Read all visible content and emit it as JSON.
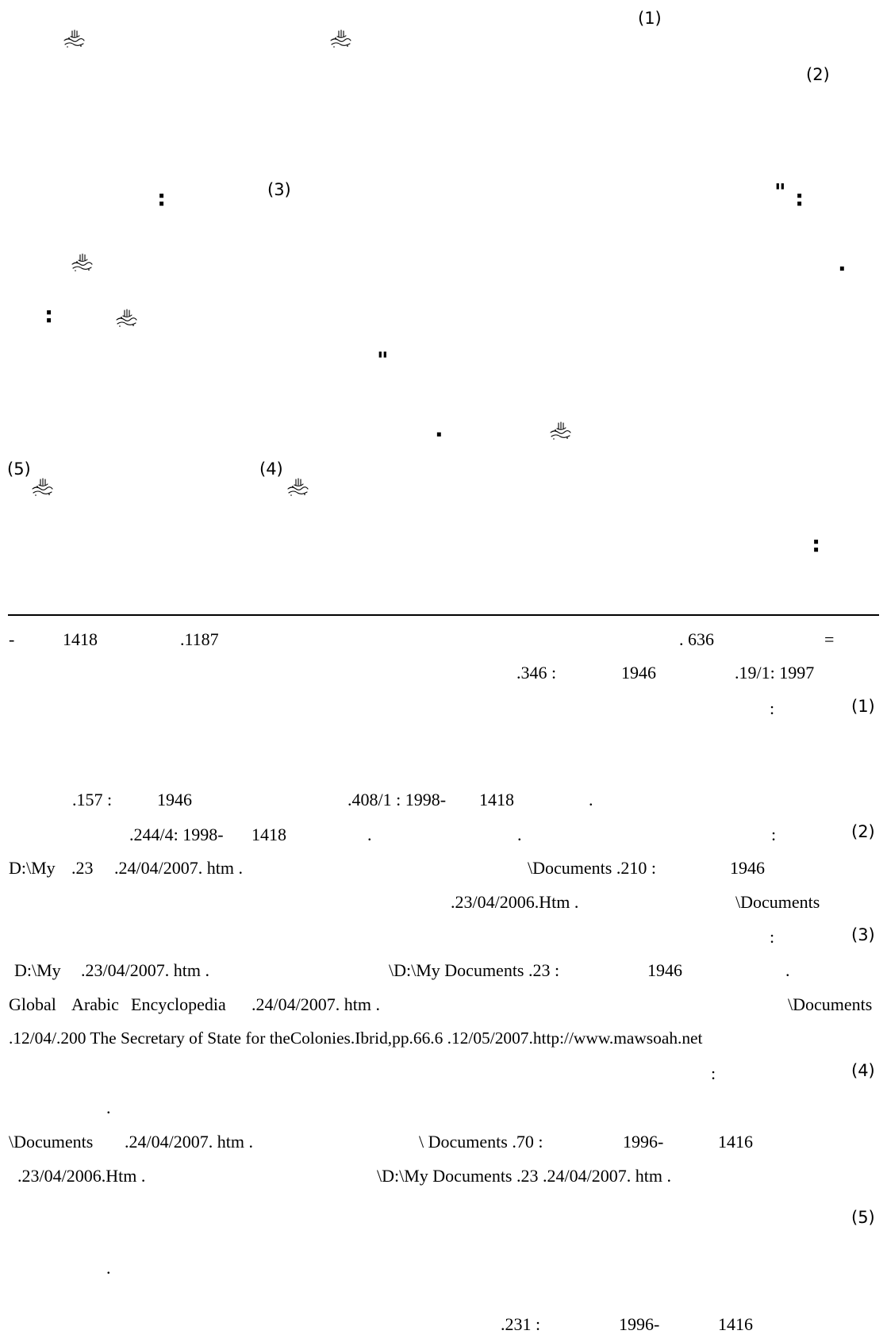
{
  "body": {
    "fn1_ref": "(1)",
    "fn2_ref": "(2)",
    "fn3_ref": "(3)",
    "fn4_ref": "(4)",
    "fn5_ref": "(5)",
    "colon": ":",
    "quote": "\"",
    "period": "."
  },
  "ornament_glyph": "رضي الله عنه",
  "ornament_icon": "radiyallahu-anhu-ligature-icon",
  "footnotes": {
    "l1_a": "-",
    "l1_b": "1418",
    "l1_c": ".1187",
    "l1_d": ". 636",
    "l1_e": "=",
    "l2_a": ".346 :",
    "l2_b": "1946",
    "l2_c": ".19/1: 1997",
    "l3_a": ":",
    "l3_b": "(1)",
    "l4_a": ".157 :",
    "l4_b": "1946",
    "l4_c": ".408/1 : 1998-",
    "l4_d": "1418",
    "l4_e": ".",
    "l5_a": ".244/4: 1998-",
    "l5_b": "1418",
    "l5_c": ".",
    "l5_d": ".",
    "l5_e": ":",
    "l5_f": "(2)",
    "l6_a": "D:\\My",
    "l6_b": ".23",
    "l6_c": ".24/04/2007. htm .",
    "l6_d": "\\Documents .210 :",
    "l6_e": "1946",
    "l7_a": ".23/04/2006.Htm .",
    "l7_b": "\\Documents",
    "l8_a": ":",
    "l8_b": "(3)",
    "l9_a": "D:\\My",
    "l9_b": ".23/04/2007. htm .",
    "l9_c": "\\D:\\My Documents .23 :",
    "l9_d": "1946",
    "l9_e": ".",
    "l10_a": "Global",
    "l10_b": "Arabic",
    "l10_c": "Encyclopedia",
    "l10_d": ".24/04/2007. htm .",
    "l10_e": "\\Documents",
    "l11": ".12/04/.200 The Secretary of State for theColonies.Ibrid,pp.66.6  .12/05/2007.http://www.mawsoah.net",
    "l12_a": ":",
    "l12_b": "(4)",
    "l13": ".",
    "l14_a": "\\Documents",
    "l14_b": ".24/04/2007. htm .",
    "l14_c": "\\  Documents  .70 :",
    "l14_d": "1996-",
    "l14_e": "1416",
    "l15_a": ".23/04/2006.Htm .",
    "l15_b": "\\D:\\My Documents .23   .24/04/2007. htm .",
    "l16": "(5)",
    "l17": ".",
    "l18_a": ".231 :",
    "l18_b": "1996-",
    "l18_c": "1416"
  }
}
